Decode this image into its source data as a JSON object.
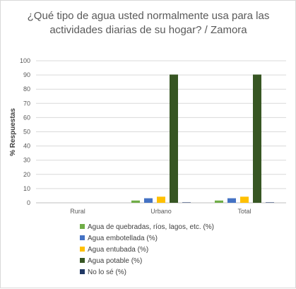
{
  "chart_data": {
    "type": "bar",
    "title_line1": "¿Qué tipo de agua usted normalmente usa para las",
    "title_line2": "actividades diarias de su hogar? / Zamora",
    "xlabel": "",
    "ylabel": "% Respuestas",
    "ylim": [
      0,
      100
    ],
    "yticks": [
      0,
      10,
      20,
      30,
      40,
      50,
      60,
      70,
      80,
      90,
      100
    ],
    "grid": true,
    "legend_position": "bottom",
    "categories": [
      "Rural",
      "Urbano",
      "Total"
    ],
    "series": [
      {
        "name": "Agua de quebradas, ríos, lagos, etc. (%)",
        "color": "#70ad47",
        "values": [
          0,
          1.6,
          1.6
        ]
      },
      {
        "name": "Agua embotellada (%)",
        "color": "#4472c4",
        "values": [
          0,
          3.2,
          3.2
        ]
      },
      {
        "name": "Agua entubada (%)",
        "color": "#ffc000",
        "values": [
          0,
          4.3,
          4.3
        ]
      },
      {
        "name": "Agua potable (%)",
        "color": "#375623",
        "values": [
          0,
          90.3,
          90.3
        ]
      },
      {
        "name": "No lo sé (%)",
        "color": "#203864",
        "values": [
          0,
          0.3,
          0.3
        ]
      }
    ]
  }
}
